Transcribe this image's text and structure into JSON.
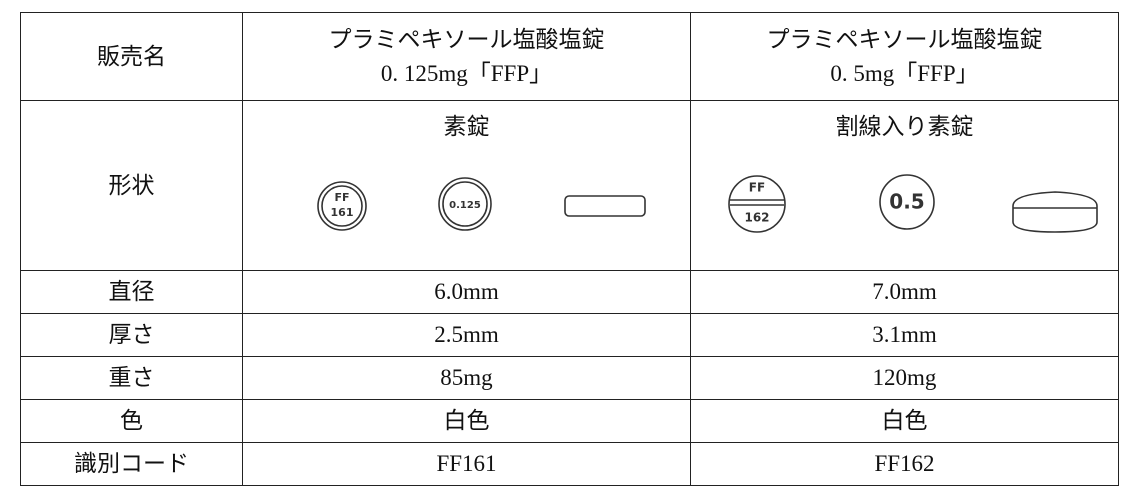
{
  "table": {
    "header": [
      "販売名",
      "プラミペキソール塩酸塩錠",
      "0. 125mg「FFP」",
      "プラミペキソール塩酸塩錠",
      "0. 5mg「FFP」"
    ],
    "shape": {
      "label": "形状",
      "col1": "素錠",
      "col2": "割線入り素錠",
      "imprints": {
        "a1": "FF",
        "a2": "161",
        "b": "0.125",
        "c1": "FF",
        "c2": "162",
        "d": "0.5"
      }
    },
    "rows": [
      [
        "直径",
        "6.0mm",
        "7.0mm"
      ],
      [
        "厚さ",
        "2.5mm",
        "3.1mm"
      ],
      [
        "重さ",
        "85mg",
        "120mg"
      ],
      [
        "色",
        "白色",
        "白色"
      ],
      [
        "識別コード",
        "FF161",
        "FF162"
      ]
    ]
  }
}
